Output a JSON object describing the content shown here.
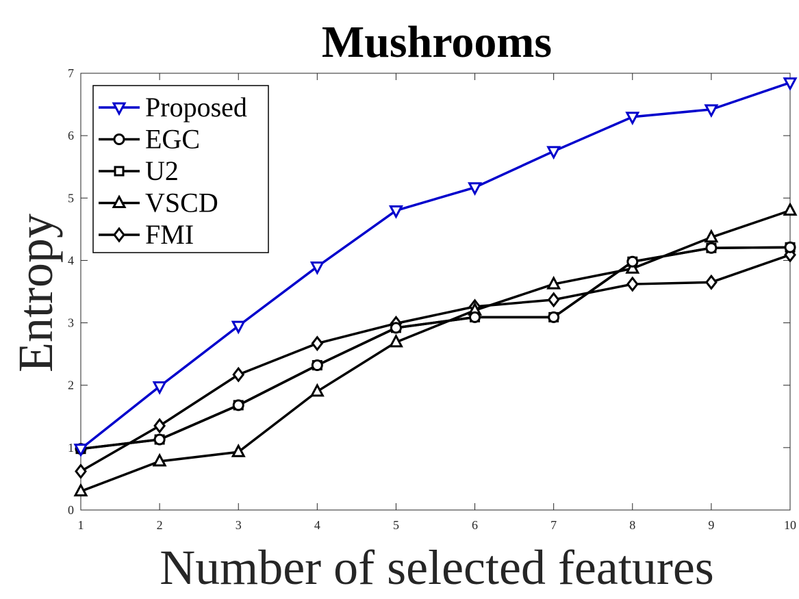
{
  "chart_data": {
    "type": "line",
    "title": "Mushrooms",
    "xlabel": "Number of selected features",
    "ylabel": "Entropy",
    "xlim": [
      1,
      10
    ],
    "ylim": [
      0,
      7
    ],
    "x": [
      1,
      2,
      3,
      4,
      5,
      6,
      7,
      8,
      9,
      10
    ],
    "xticks": [
      "1",
      "2",
      "3",
      "4",
      "5",
      "6",
      "7",
      "8",
      "9",
      "10"
    ],
    "yticks": [
      "0",
      "1",
      "2",
      "3",
      "4",
      "5",
      "6",
      "7"
    ],
    "grid": false,
    "legend_position": "top-left",
    "series": [
      {
        "name": "Proposed",
        "marker": "triangle-down",
        "color": "#0000cc",
        "values": [
          0.98,
          1.98,
          2.95,
          3.9,
          4.8,
          5.17,
          5.75,
          6.3,
          6.42,
          6.85
        ]
      },
      {
        "name": "EGC",
        "marker": "circle",
        "color": "#000000",
        "values": [
          0.98,
          1.13,
          1.68,
          2.32,
          2.92,
          3.09,
          3.09,
          3.98,
          4.2,
          4.21
        ]
      },
      {
        "name": "U2",
        "marker": "square",
        "color": "#000000",
        "values": [
          0.98,
          1.13,
          1.68,
          2.32,
          2.92,
          3.09,
          3.09,
          3.98,
          4.2,
          4.21
        ]
      },
      {
        "name": "VSCD",
        "marker": "triangle-up",
        "color": "#000000",
        "values": [
          0.3,
          0.78,
          0.93,
          1.9,
          2.69,
          3.2,
          3.62,
          3.87,
          4.37,
          4.8
        ]
      },
      {
        "name": "FMI",
        "marker": "diamond",
        "color": "#000000",
        "values": [
          0.62,
          1.35,
          2.17,
          2.67,
          2.99,
          3.26,
          3.37,
          3.62,
          3.65,
          4.09
        ]
      }
    ]
  }
}
